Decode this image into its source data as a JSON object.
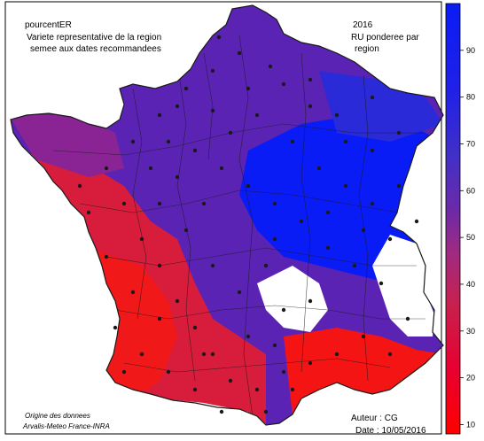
{
  "header": {
    "variable": "pourcentER",
    "description_line1": "Variete representative de la region",
    "description_line2": "semee aux dates recommandees",
    "year": "2016",
    "method_line1": "RU ponderee par",
    "method_line2": "region"
  },
  "footer": {
    "source_line1": "Origine des donnees",
    "source_line2": "Arvalis-Meteo France-INRA",
    "author": "Auteur : CG",
    "date": "Date : 10/05/2016"
  },
  "colors": {
    "blue": "#0a1cf5",
    "purple": "#5a23b4",
    "magenta": "#b41e64",
    "red": "#f51414",
    "stations": "#1a1a1a",
    "borders": "#1a1a1a"
  },
  "legend": {
    "ticks": [
      10,
      20,
      30,
      40,
      50,
      60,
      70,
      80,
      90
    ],
    "min": 8,
    "max": 100,
    "scale_colors": [
      "#ff0000",
      "#e8003a",
      "#c8204e",
      "#a02a80",
      "#6c2aa8",
      "#4030c8",
      "#2020e8",
      "#0a1cf5"
    ]
  },
  "map": {
    "stations": [
      [
        247,
        42
      ],
      [
        270,
        60
      ],
      [
        305,
        75
      ],
      [
        320,
        95
      ],
      [
        350,
        120
      ],
      [
        380,
        130
      ],
      [
        420,
        110
      ],
      [
        450,
        150
      ],
      [
        240,
        80
      ],
      [
        210,
        100
      ],
      [
        180,
        130
      ],
      [
        150,
        160
      ],
      [
        120,
        190
      ],
      [
        140,
        230
      ],
      [
        160,
        270
      ],
      [
        180,
        300
      ],
      [
        200,
        340
      ],
      [
        220,
        370
      ],
      [
        240,
        400
      ],
      [
        260,
        430
      ],
      [
        290,
        440
      ],
      [
        320,
        420
      ],
      [
        350,
        410
      ],
      [
        380,
        400
      ],
      [
        410,
        380
      ],
      [
        440,
        400
      ],
      [
        460,
        360
      ],
      [
        430,
        320
      ],
      [
        400,
        300
      ],
      [
        370,
        280
      ],
      [
        340,
        250
      ],
      [
        310,
        230
      ],
      [
        280,
        210
      ],
      [
        250,
        190
      ],
      [
        220,
        170
      ],
      [
        190,
        160
      ],
      [
        260,
        150
      ],
      [
        290,
        130
      ],
      [
        330,
        160
      ],
      [
        360,
        190
      ],
      [
        390,
        210
      ],
      [
        420,
        230
      ],
      [
        450,
        210
      ],
      [
        470,
        250
      ],
      [
        440,
        270
      ],
      [
        300,
        300
      ],
      [
        270,
        330
      ],
      [
        240,
        300
      ],
      [
        210,
        260
      ],
      [
        180,
        230
      ],
      [
        150,
        330
      ],
      [
        130,
        370
      ],
      [
        160,
        400
      ],
      [
        190,
        420
      ],
      [
        220,
        440
      ],
      [
        250,
        465
      ],
      [
        300,
        465
      ],
      [
        330,
        440
      ],
      [
        100,
        240
      ],
      [
        90,
        210
      ],
      [
        200,
        200
      ],
      [
        230,
        230
      ],
      [
        320,
        350
      ],
      [
        350,
        340
      ],
      [
        280,
        380
      ],
      [
        310,
        390
      ],
      [
        170,
        190
      ],
      [
        120,
        290
      ],
      [
        200,
        120
      ],
      [
        280,
        100
      ],
      [
        350,
        90
      ],
      [
        390,
        160
      ],
      [
        240,
        125
      ],
      [
        310,
        270
      ],
      [
        370,
        240
      ],
      [
        410,
        260
      ],
      [
        180,
        360
      ],
      [
        140,
        420
      ],
      [
        230,
        400
      ],
      [
        420,
        170
      ]
    ]
  }
}
